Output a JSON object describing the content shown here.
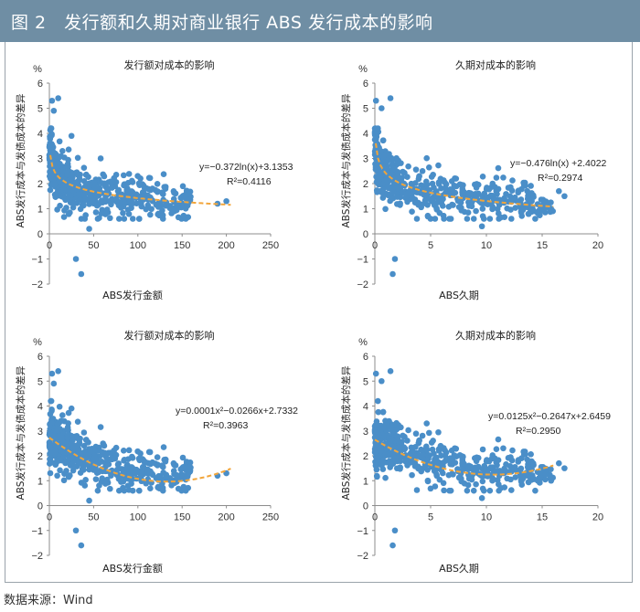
{
  "page": {
    "title": "图 2　发行额和久期对商业银行 ABS 发行成本的影响",
    "source": "数据来源：Wind"
  },
  "colors": {
    "title_bar": "#6f8ea4",
    "point": "#4a8ec8",
    "trend": "#f2a53a",
    "axis": "#8c8c8c"
  },
  "chart_data": [
    {
      "type": "scatter",
      "title": "发行额对成本的影响",
      "xlabel": "ABS发行金额",
      "ylabel": "ABS发行成本与发债成本的差异",
      "unit": "%",
      "xlim": [
        0,
        250
      ],
      "ylim": [
        -2,
        6
      ],
      "xticks": [
        0,
        50,
        100,
        150,
        200,
        250
      ],
      "yticks": [
        -2,
        -1,
        0,
        1,
        2,
        3,
        4,
        5,
        6
      ],
      "trendline": {
        "kind": "log",
        "a": -0.372,
        "b": 3.1353,
        "x_range": [
          1,
          205
        ]
      },
      "equation": "y=−0.372ln(x)+3.1353",
      "r2_label": "R²=0.4116",
      "outliers": [
        [
          30,
          -1.0
        ],
        [
          36,
          -1.6
        ],
        [
          3,
          5.3
        ],
        [
          10,
          5.4
        ],
        [
          5,
          4.9
        ],
        [
          45,
          0.2
        ],
        [
          25,
          3.9
        ],
        [
          200,
          1.3
        ],
        [
          190,
          1.2
        ]
      ],
      "cluster": {
        "seed": 11,
        "count": 520,
        "x_max": 160,
        "y_min": 0.6,
        "y_max": 4.2
      }
    },
    {
      "type": "scatter",
      "title": "久期对成本的影响",
      "xlabel": "ABS久期",
      "ylabel": "ABS发行成本与发债成本的差异",
      "unit": "%",
      "xlim": [
        0,
        20
      ],
      "ylim": [
        -2,
        6
      ],
      "xticks": [
        0,
        5,
        10,
        15,
        20
      ],
      "yticks": [
        -2,
        -1,
        0,
        1,
        2,
        3,
        4,
        5,
        6
      ],
      "trendline": {
        "kind": "log",
        "a": -0.476,
        "b": 2.4022,
        "x_range": [
          0.08,
          16
        ]
      },
      "equation": "y=−0.476ln(x) +2.4022",
      "r2_label": "R²=0.2974",
      "outliers": [
        [
          1.8,
          -1.0
        ],
        [
          1.6,
          -1.6
        ],
        [
          0.1,
          5.3
        ],
        [
          1.4,
          5.4
        ],
        [
          0.6,
          5.0
        ],
        [
          9.6,
          0.3
        ],
        [
          17,
          1.5
        ],
        [
          16.5,
          1.7
        ],
        [
          15.8,
          1.0
        ]
      ],
      "cluster": {
        "seed": 23,
        "count": 520,
        "x_max": 16,
        "y_min": 0.6,
        "y_max": 4.2
      }
    },
    {
      "type": "scatter",
      "title": "发行额对成本的影响",
      "xlabel": "ABS发行金额",
      "ylabel": "ABS发行成本与发债成本的差异",
      "unit": "%",
      "xlim": [
        0,
        250
      ],
      "ylim": [
        -2,
        6
      ],
      "xticks": [
        0,
        50,
        100,
        150,
        200,
        250
      ],
      "yticks": [
        -2,
        -1,
        0,
        1,
        2,
        3,
        4,
        5,
        6
      ],
      "trendline": {
        "kind": "poly2",
        "c2": 0.0001,
        "c1": -0.0266,
        "c0": 2.7332,
        "x_range": [
          0,
          205
        ]
      },
      "equation": "y=0.0001x²−0.0266x+2.7332",
      "r2_label": "R²=0.3963",
      "outliers": [
        [
          30,
          -1.0
        ],
        [
          36,
          -1.6
        ],
        [
          3,
          5.3
        ],
        [
          10,
          5.4
        ],
        [
          5,
          4.9
        ],
        [
          45,
          0.2
        ],
        [
          25,
          3.9
        ],
        [
          200,
          1.3
        ],
        [
          190,
          1.2
        ]
      ],
      "cluster": {
        "seed": 11,
        "count": 520,
        "x_max": 160,
        "y_min": 0.6,
        "y_max": 4.2
      }
    },
    {
      "type": "scatter",
      "title": "久期对成本的影响",
      "xlabel": "ABS久期",
      "ylabel": "ABS发行成本与发债成本的差异",
      "unit": "%",
      "xlim": [
        0,
        20
      ],
      "ylim": [
        -2,
        6
      ],
      "xticks": [
        0,
        5,
        10,
        15,
        20
      ],
      "yticks": [
        -2,
        -1,
        0,
        1,
        2,
        3,
        4,
        5,
        6
      ],
      "trendline": {
        "kind": "poly2",
        "c2": 0.0125,
        "c1": -0.2647,
        "c0": 2.6459,
        "x_range": [
          0,
          16
        ]
      },
      "equation": "y=0.0125x²−0.2647x+2.6459",
      "r2_label": "R²=0.2950",
      "outliers": [
        [
          1.8,
          -1.0
        ],
        [
          1.6,
          -1.6
        ],
        [
          0.1,
          5.3
        ],
        [
          1.4,
          5.4
        ],
        [
          0.6,
          5.0
        ],
        [
          9.6,
          0.3
        ],
        [
          17,
          1.5
        ],
        [
          16.5,
          1.7
        ],
        [
          15.8,
          1.0
        ]
      ],
      "cluster": {
        "seed": 23,
        "count": 520,
        "x_max": 16,
        "y_min": 0.6,
        "y_max": 4.2
      }
    }
  ]
}
